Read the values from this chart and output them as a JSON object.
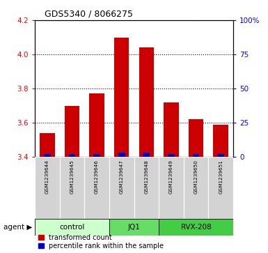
{
  "title": "GDS5340 / 8066275",
  "samples": [
    "GSM1239644",
    "GSM1239645",
    "GSM1239646",
    "GSM1239647",
    "GSM1239648",
    "GSM1239649",
    "GSM1239650",
    "GSM1239651"
  ],
  "red_values": [
    3.54,
    3.7,
    3.77,
    4.1,
    4.04,
    3.72,
    3.62,
    3.59
  ],
  "blue_percentile": [
    2,
    2,
    2,
    3,
    3,
    2,
    2,
    2
  ],
  "groups": [
    {
      "label": "control",
      "start": 0,
      "end": 2,
      "color": "#ccffcc"
    },
    {
      "label": "JQ1",
      "start": 3,
      "end": 4,
      "color": "#66dd66"
    },
    {
      "label": "RVX-208",
      "start": 5,
      "end": 7,
      "color": "#44cc44"
    }
  ],
  "ylim": [
    3.4,
    4.2
  ],
  "yticks": [
    3.4,
    3.6,
    3.8,
    4.0,
    4.2
  ],
  "right_yticks": [
    0,
    25,
    50,
    75,
    100
  ],
  "bar_width": 0.6,
  "red_color": "#cc0000",
  "blue_color": "#0000cc",
  "bg_color": "#d3d3d3",
  "plot_bg": "#ffffff",
  "legend_red": "transformed count",
  "legend_blue": "percentile rank within the sample",
  "agent_label": "agent"
}
